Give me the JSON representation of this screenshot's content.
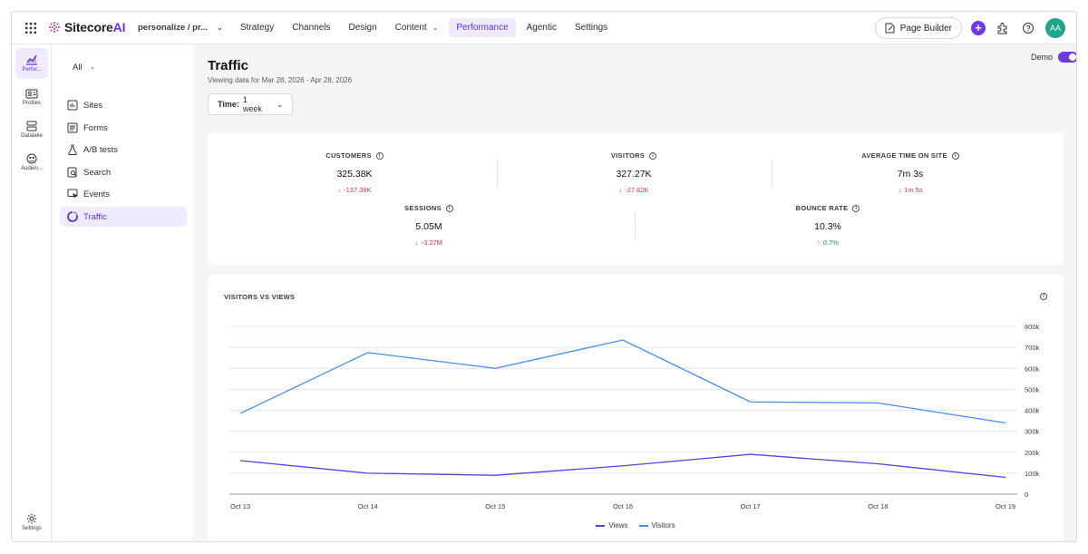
{
  "header": {
    "logo_text": "Sitecore",
    "logo_ai": "AI",
    "project": "personalize / pr...",
    "nav": [
      {
        "label": "Strategy"
      },
      {
        "label": "Channels"
      },
      {
        "label": "Design"
      },
      {
        "label": "Content"
      },
      {
        "label": "Performance"
      },
      {
        "label": "Agentic"
      },
      {
        "label": "Settings"
      }
    ],
    "active_nav": "Performance",
    "page_builder": "Page Builder",
    "avatar_initials": "AA"
  },
  "rail": {
    "items": [
      {
        "label": "Perfor...",
        "icon": "chart-icon"
      },
      {
        "label": "Profiles",
        "icon": "profile-card-icon"
      },
      {
        "label": "Datalake",
        "icon": "database-icon"
      },
      {
        "label": "Audien...",
        "icon": "audience-icon"
      }
    ],
    "settings_label": "Settings"
  },
  "subnav": {
    "filter": "All",
    "items": [
      {
        "label": "Sites",
        "icon": "sites-icon"
      },
      {
        "label": "Forms",
        "icon": "forms-icon"
      },
      {
        "label": "A/B tests",
        "icon": "flask-icon"
      },
      {
        "label": "Search",
        "icon": "search-icon"
      },
      {
        "label": "Events",
        "icon": "events-icon"
      },
      {
        "label": "Traffic",
        "icon": "traffic-icon"
      }
    ],
    "active": "Traffic"
  },
  "main": {
    "title": "Traffic",
    "subtitle": "Viewing data for Mar 28, 2026 - Apr 28, 2026",
    "time_label": "Time:",
    "time_value": "1 week",
    "demo_label": "Demo",
    "demo_enabled": true
  },
  "metrics": [
    {
      "label": "CUSTOMERS",
      "value": "325.38K",
      "delta": "-137.38K",
      "direction": "down"
    },
    {
      "label": "VISITORS",
      "value": "327.27K",
      "delta": "-27.62K",
      "direction": "down"
    },
    {
      "label": "AVERAGE TIME ON SITE",
      "value": "7m 3s",
      "delta": "1m 5s",
      "direction": "down"
    },
    {
      "label": "SESSIONS",
      "value": "5.05M",
      "delta": "-3.27M",
      "direction": "down"
    },
    {
      "label": "BOUNCE RATE",
      "value": "10.3%",
      "delta": "0.7%",
      "direction": "up"
    }
  ],
  "colors": {
    "accent": "#6b3bea",
    "down": "#d8324b",
    "up": "#1f8f6d",
    "views_line": "#5b3fd8",
    "visitors_line": "#4a8af0"
  },
  "chart_data": {
    "type": "line",
    "title": "VISITORS VS VIEWS",
    "categories": [
      "Oct 13",
      "Oct 14",
      "Oct 15",
      "Oct 16",
      "Oct 17",
      "Oct 18",
      "Oct 19"
    ],
    "series": [
      {
        "name": "Views",
        "values": [
          160000,
          100000,
          90000,
          135000,
          190000,
          145000,
          80000
        ]
      },
      {
        "name": "Visitors",
        "values": [
          385000,
          675000,
          600000,
          735000,
          440000,
          435000,
          340000
        ]
      }
    ],
    "ylim": [
      0,
      800000
    ],
    "yticks": [
      "0",
      "100k",
      "200k",
      "300k",
      "400k",
      "500k",
      "600k",
      "700k",
      "800k"
    ],
    "y_axis_side": "right",
    "grid": true,
    "legend": "bottom-center"
  }
}
